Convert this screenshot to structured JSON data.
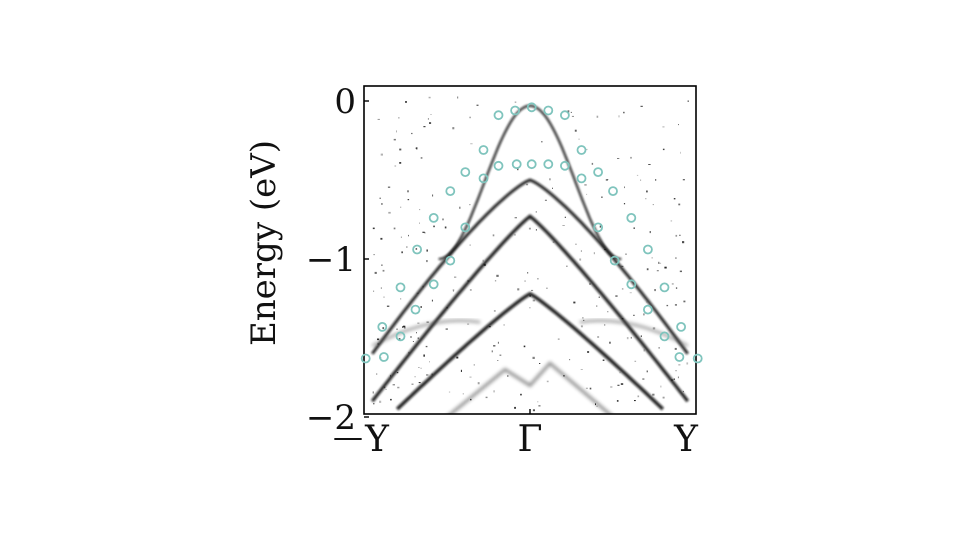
{
  "chart_data": {
    "type": "scatter",
    "title": "",
    "xlabel": "",
    "ylabel": "Energy (eV)",
    "ylim": [
      -2,
      0.1
    ],
    "xlim": [
      -1,
      1
    ],
    "x_tick_labels": [
      {
        "pos": -1,
        "label": "Y"
      },
      {
        "pos": 0,
        "label": "Γ"
      },
      {
        "pos": 1,
        "label": "Y"
      }
    ],
    "y_tick_labels": [
      {
        "pos": 0,
        "label": "0"
      },
      {
        "pos": -1,
        "label": "−1"
      },
      {
        "pos": -2,
        "label": "−2"
      }
    ],
    "stray_label": "—",
    "grid": false,
    "legend": null,
    "background_image": "ARPES grayscale intensity map showing dispersing bands (band tops near Γ at approx -0.05, -0.5, -0.75, -1.2 eV)",
    "intensity_bands": [
      {
        "name": "band-1",
        "apex_energy": -0.03,
        "edge_energy": -1.0,
        "k_extent": 0.55
      },
      {
        "name": "band-2",
        "apex_energy": -0.5,
        "edge_energy": -1.6,
        "k_extent": 0.95
      },
      {
        "name": "band-3",
        "apex_energy": -0.73,
        "edge_energy": -1.9,
        "k_extent": 0.95
      },
      {
        "name": "band-4",
        "apex_energy": -1.22,
        "edge_energy": -1.95,
        "k_extent": 0.8
      }
    ],
    "series": [
      {
        "name": "calc-band-outer",
        "marker": "open-circle",
        "color": "#7fc4bd",
        "points": [
          [
            -0.99,
            -1.63
          ],
          [
            -0.89,
            -1.43
          ],
          [
            -0.78,
            -1.18
          ],
          [
            -0.68,
            -0.94
          ],
          [
            -0.58,
            -0.74
          ],
          [
            -0.48,
            -0.57
          ],
          [
            -0.39,
            -0.45
          ],
          [
            -0.28,
            -0.31
          ],
          [
            -0.19,
            -0.09
          ],
          [
            -0.09,
            -0.06
          ],
          [
            0.01,
            -0.04
          ],
          [
            0.11,
            -0.06
          ],
          [
            0.21,
            -0.09
          ],
          [
            0.31,
            -0.31
          ],
          [
            0.41,
            -0.45
          ],
          [
            0.5,
            -0.57
          ],
          [
            0.61,
            -0.74
          ],
          [
            0.71,
            -0.94
          ],
          [
            0.81,
            -1.18
          ],
          [
            0.91,
            -1.43
          ],
          [
            1.01,
            -1.63
          ]
        ]
      },
      {
        "name": "calc-band-inner",
        "marker": "open-circle",
        "color": "#7fc4bd",
        "points": [
          [
            -0.88,
            -1.62
          ],
          [
            -0.78,
            -1.49
          ],
          [
            -0.69,
            -1.32
          ],
          [
            -0.58,
            -1.16
          ],
          [
            -0.48,
            -1.01
          ],
          [
            -0.39,
            -0.8
          ],
          [
            -0.28,
            -0.49
          ],
          [
            -0.19,
            -0.41
          ],
          [
            -0.08,
            -0.4
          ],
          [
            0.01,
            -0.4
          ],
          [
            0.11,
            -0.4
          ],
          [
            0.21,
            -0.41
          ],
          [
            0.31,
            -0.49
          ],
          [
            0.41,
            -0.8
          ],
          [
            0.51,
            -1.01
          ],
          [
            0.61,
            -1.16
          ],
          [
            0.71,
            -1.32
          ],
          [
            0.81,
            -1.49
          ],
          [
            0.9,
            -1.62
          ]
        ]
      }
    ]
  },
  "colors": {
    "marker": "#7fc4bd",
    "frame": "#000000",
    "band": "#111111"
  }
}
